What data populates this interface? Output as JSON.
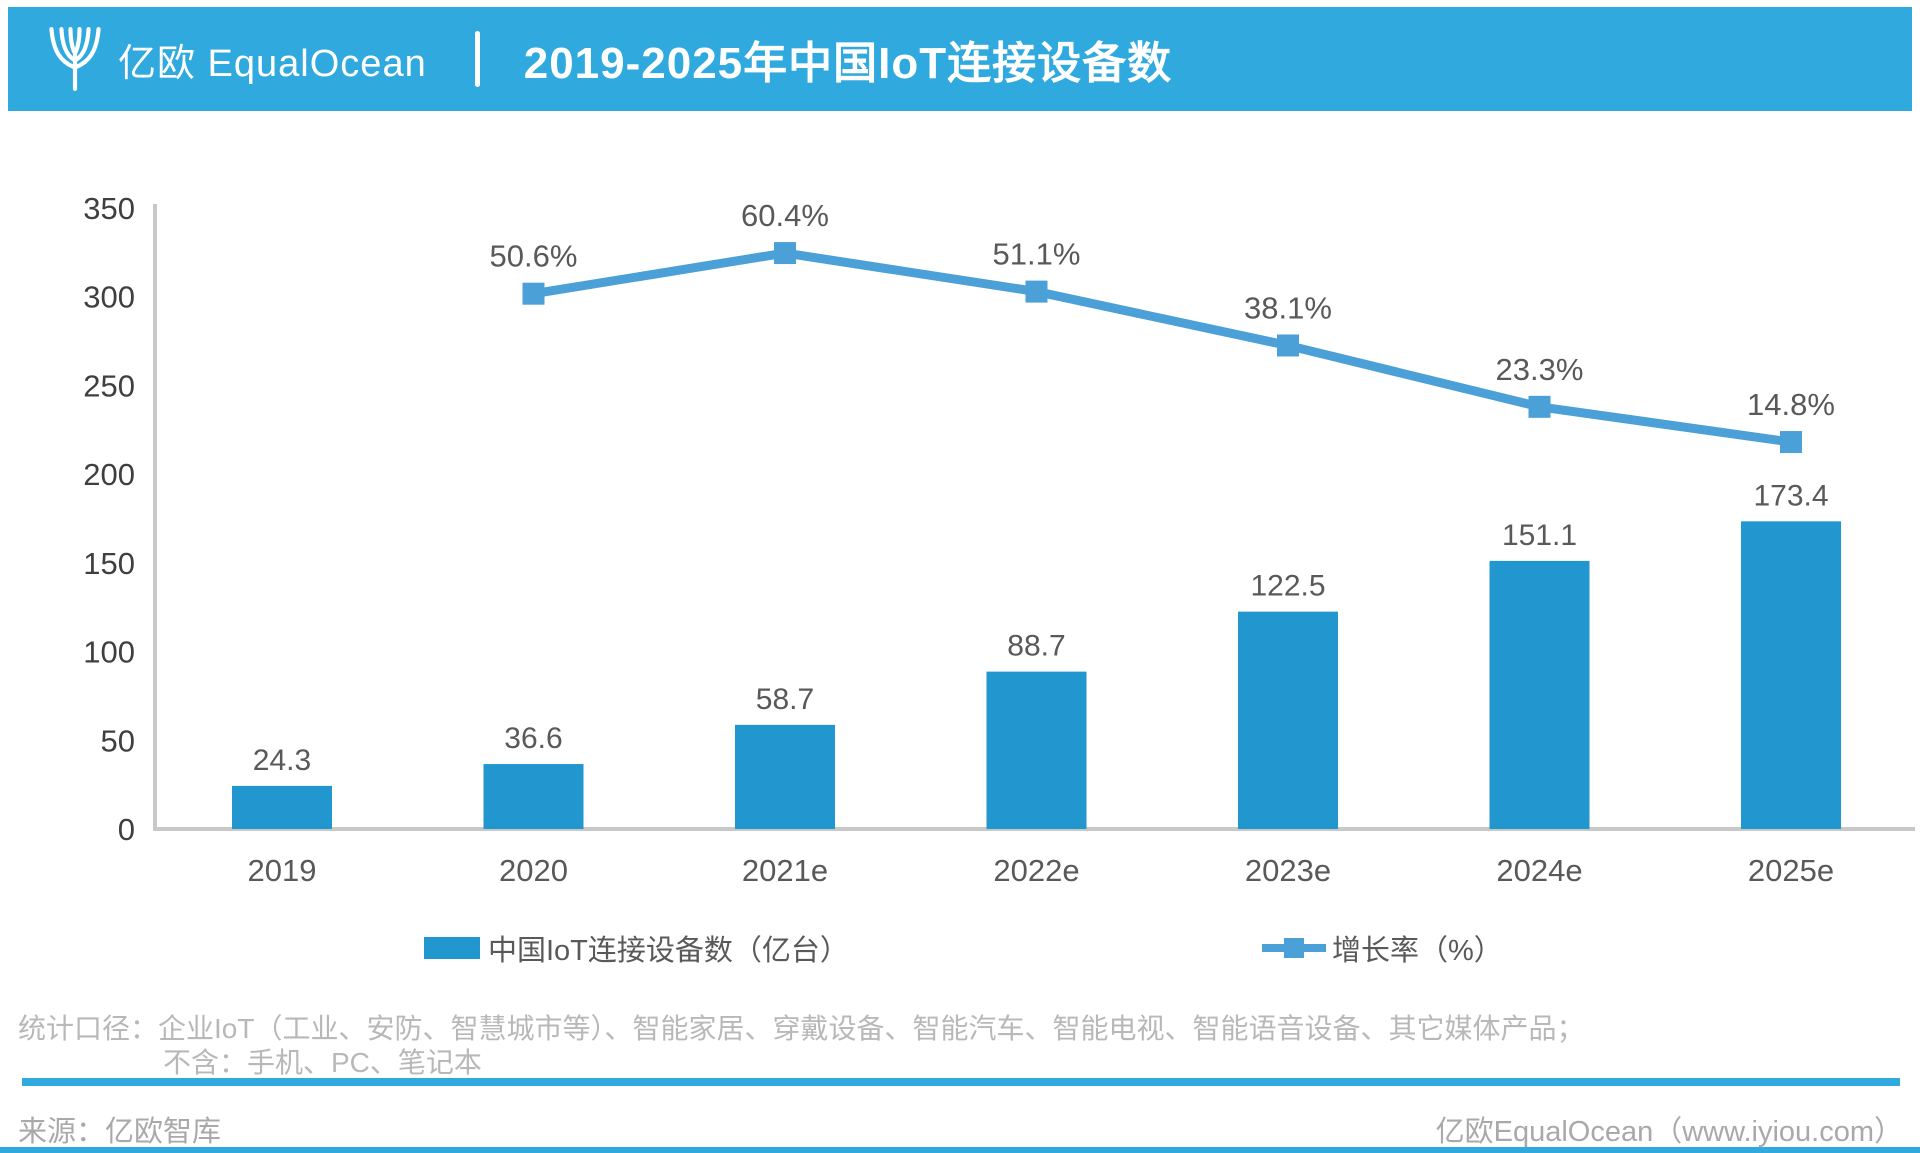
{
  "header": {
    "brand": "亿欧 EqualOcean",
    "title": "2019-2025年中国IoT连接设备数"
  },
  "chart_data": {
    "type": "bar",
    "subtype": "bar+line combo",
    "title": "2019-2025年中国IoT连接设备数",
    "categories": [
      "2019",
      "2020",
      "2021e",
      "2022e",
      "2023e",
      "2024e",
      "2025e"
    ],
    "series": [
      {
        "name": "中国IoT连接设备数（亿台）",
        "type": "bar",
        "values": [
          24.3,
          36.6,
          58.7,
          88.7,
          122.5,
          151.1,
          173.4
        ],
        "labels": [
          "24.3",
          "36.6",
          "58.7",
          "88.7",
          "122.5",
          "151.1",
          "173.4"
        ],
        "color": "#2196CF"
      },
      {
        "name": "增长率（%）",
        "type": "line",
        "values": [
          null,
          50.6,
          60.4,
          51.1,
          38.1,
          23.3,
          14.8
        ],
        "labels": [
          null,
          "50.6%",
          "60.4%",
          "51.1%",
          "38.1%",
          "23.3%",
          "14.8%"
        ],
        "color": "#4BA0D7"
      }
    ],
    "xlabel": "",
    "ylabel": "",
    "ylim": [
      0,
      350
    ],
    "yticks": [
      0,
      50,
      100,
      150,
      200,
      250,
      300,
      350
    ],
    "grid": false,
    "legend_position": "bottom"
  },
  "footnote": {
    "line1": "统计口径：企业IoT（工业、安防、智慧城市等）、智能家居、穿戴设备、智能汽车、智能电视、智能语音设备、其它媒体产品；",
    "line2": "不含：手机、PC、笔记本"
  },
  "footer": {
    "source": "来源：亿欧智库",
    "site": "亿欧EqualOcean（www.iyiou.com）"
  },
  "colors": {
    "accent": "#2FA9DE",
    "bar": "#2196CF",
    "line": "#4BA0D7",
    "axis": "#c8c8c8",
    "tick_text": "#3f3f3f",
    "label_text": "#595959"
  }
}
